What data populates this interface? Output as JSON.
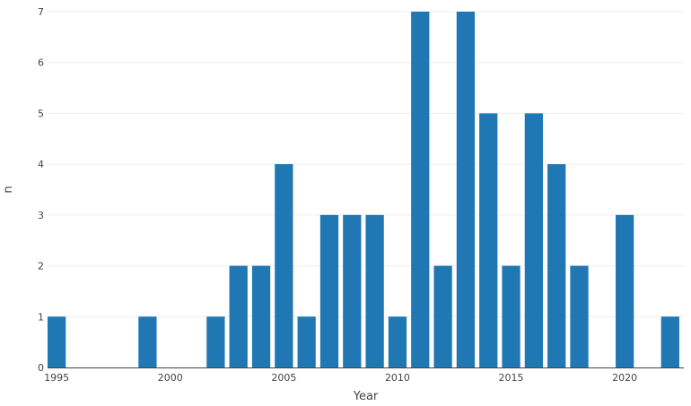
{
  "chart_data": {
    "type": "bar",
    "xlabel": "Year",
    "ylabel": "n",
    "x": [
      1995,
      1999,
      2002,
      2003,
      2004,
      2005,
      2006,
      2007,
      2008,
      2009,
      2010,
      2011,
      2012,
      2013,
      2014,
      2015,
      2016,
      2017,
      2018,
      2020,
      2022
    ],
    "values": [
      1,
      1,
      1,
      2,
      2,
      4,
      1,
      3,
      3,
      3,
      1,
      7,
      2,
      7,
      5,
      2,
      5,
      4,
      2,
      3,
      1
    ],
    "xlim": [
      1994.6,
      2022.6
    ],
    "ylim": [
      0,
      7
    ],
    "x_ticks": [
      "1995",
      "2000",
      "2005",
      "2010",
      "2015",
      "2020"
    ],
    "y_ticks": [
      "0",
      "1",
      "2",
      "3",
      "4",
      "5",
      "6",
      "7"
    ],
    "grid": true,
    "bar_color": "#1f77b4"
  }
}
